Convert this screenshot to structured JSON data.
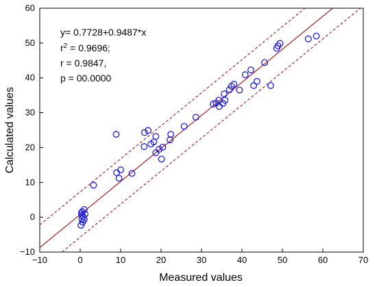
{
  "chart_data": {
    "type": "scatter",
    "xlabel": "Measured values",
    "ylabel": "Calculated values",
    "xlim": [
      -10,
      70
    ],
    "ylim": [
      -10,
      60
    ],
    "xticks": [
      -10,
      0,
      10,
      20,
      30,
      40,
      50,
      60,
      70
    ],
    "yticks": [
      -10,
      0,
      10,
      20,
      30,
      40,
      50,
      60
    ],
    "grid": false,
    "colors": {
      "points": "#1a1adb",
      "fit_line": "#a52a2a",
      "band": "#a52a2a"
    },
    "fit": {
      "intercept": 0.7728,
      "slope": 0.9487
    },
    "band_offset": 6.5,
    "stats": {
      "equation": "y= 0.7728+0.9487*x",
      "r2_prefix": "r",
      "r2_sup": "2",
      "r2_value": " = 0.9696;",
      "r": "r = 0.9847,",
      "p": "p = 00.0000"
    },
    "points": [
      [
        0.2,
        -2.3
      ],
      [
        0.6,
        -1.4
      ],
      [
        0.4,
        -0.5
      ],
      [
        1.0,
        -0.7
      ],
      [
        0.8,
        0.1
      ],
      [
        0.4,
        0.6
      ],
      [
        1.2,
        0.9
      ],
      [
        0.5,
        1.6
      ],
      [
        1.0,
        2.2
      ],
      [
        0.3,
        1.2
      ],
      [
        3.3,
        9.2
      ],
      [
        9.0,
        12.8
      ],
      [
        9.6,
        11.2
      ],
      [
        10.0,
        13.6
      ],
      [
        12.8,
        12.6
      ],
      [
        8.9,
        23.8
      ],
      [
        15.8,
        20.3
      ],
      [
        15.9,
        24.3
      ],
      [
        16.8,
        24.9
      ],
      [
        17.5,
        21.0
      ],
      [
        18.2,
        21.6
      ],
      [
        18.7,
        23.2
      ],
      [
        18.7,
        18.5
      ],
      [
        19.5,
        19.5
      ],
      [
        20.1,
        16.7
      ],
      [
        20.4,
        20.1
      ],
      [
        22.2,
        22.2
      ],
      [
        22.4,
        23.8
      ],
      [
        25.7,
        26.1
      ],
      [
        28.6,
        28.7
      ],
      [
        32.9,
        32.5
      ],
      [
        33.6,
        32.8
      ],
      [
        34.3,
        33.6
      ],
      [
        34.4,
        31.8
      ],
      [
        35.3,
        32.7
      ],
      [
        35.6,
        35.4
      ],
      [
        35.8,
        33.6
      ],
      [
        36.9,
        36.6
      ],
      [
        37.4,
        37.6
      ],
      [
        38.0,
        38.2
      ],
      [
        39.4,
        36.5
      ],
      [
        40.8,
        40.9
      ],
      [
        42.2,
        42.3
      ],
      [
        42.9,
        37.8
      ],
      [
        43.7,
        39.0
      ],
      [
        45.6,
        44.4
      ],
      [
        47.1,
        37.8
      ],
      [
        48.6,
        48.5
      ],
      [
        48.9,
        49.2
      ],
      [
        49.4,
        49.9
      ],
      [
        56.4,
        51.2
      ],
      [
        58.4,
        52.0
      ]
    ]
  }
}
